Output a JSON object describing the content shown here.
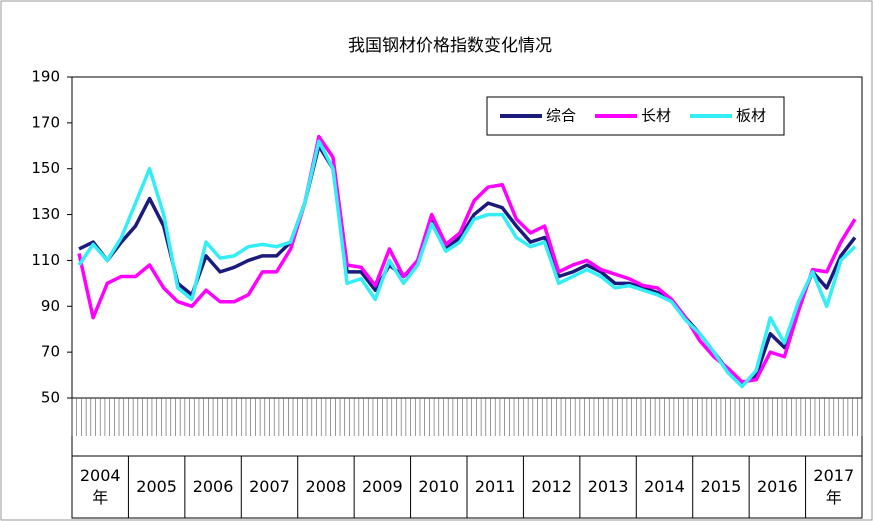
{
  "chart_data": {
    "type": "line",
    "title": "我国钢材价格指数变化情况",
    "categories": [
      "2004\n年",
      "2005",
      "2006",
      "2007",
      "2008",
      "2009",
      "2010",
      "2011",
      "2012",
      "2013",
      "2014",
      "2015",
      "2016",
      "2017\n年"
    ],
    "ylim": [
      50,
      190
    ],
    "yticks": [
      50,
      70,
      90,
      110,
      130,
      150,
      170,
      190
    ],
    "grid": false,
    "legend": "upper right",
    "series": [
      {
        "name": "综合",
        "color": "#1b1b7d",
        "values": [
          [
            115,
            118,
            110,
            118
          ],
          [
            125,
            137,
            125,
            100
          ],
          [
            95,
            112,
            105,
            107
          ],
          [
            110,
            112,
            112,
            118
          ],
          [
            135,
            160,
            150,
            105
          ],
          [
            105,
            97,
            108,
            103
          ],
          [
            108,
            128,
            115,
            120
          ],
          [
            130,
            135,
            133,
            125
          ],
          [
            118,
            120,
            103,
            105
          ],
          [
            108,
            105,
            100,
            100
          ],
          [
            98,
            96,
            93,
            85
          ],
          [
            78,
            70,
            62,
            56
          ],
          [
            60,
            78,
            72,
            90
          ],
          [
            105,
            98,
            112,
            120
          ]
        ]
      },
      {
        "name": "长材",
        "color": "#ff00ff",
        "values": [
          [
            113,
            85,
            100,
            103
          ],
          [
            103,
            108,
            98,
            92
          ],
          [
            90,
            97,
            92,
            92
          ],
          [
            95,
            105,
            105,
            115
          ],
          [
            135,
            164,
            155,
            108
          ],
          [
            107,
            99,
            115,
            103
          ],
          [
            110,
            130,
            117,
            122
          ],
          [
            136,
            142,
            143,
            128
          ],
          [
            122,
            125,
            105,
            108
          ],
          [
            110,
            106,
            104,
            102
          ],
          [
            99,
            98,
            93,
            85
          ],
          [
            75,
            68,
            63,
            57
          ],
          [
            58,
            70,
            68,
            88
          ],
          [
            106,
            105,
            118,
            128
          ]
        ]
      },
      {
        "name": "板材",
        "color": "#33eef5",
        "values": [
          [
            108,
            117,
            110,
            120
          ],
          [
            135,
            150,
            130,
            98
          ],
          [
            93,
            118,
            111,
            112
          ],
          [
            116,
            117,
            116,
            118
          ],
          [
            135,
            162,
            150,
            100
          ],
          [
            102,
            93,
            110,
            100
          ],
          [
            108,
            126,
            114,
            118
          ],
          [
            128,
            130,
            130,
            120
          ],
          [
            116,
            118,
            100,
            103
          ],
          [
            106,
            103,
            98,
            99
          ],
          [
            97,
            95,
            92,
            84
          ],
          [
            78,
            70,
            61,
            55
          ],
          [
            62,
            85,
            74,
            92
          ],
          [
            105,
            90,
            110,
            116
          ]
        ]
      }
    ]
  }
}
